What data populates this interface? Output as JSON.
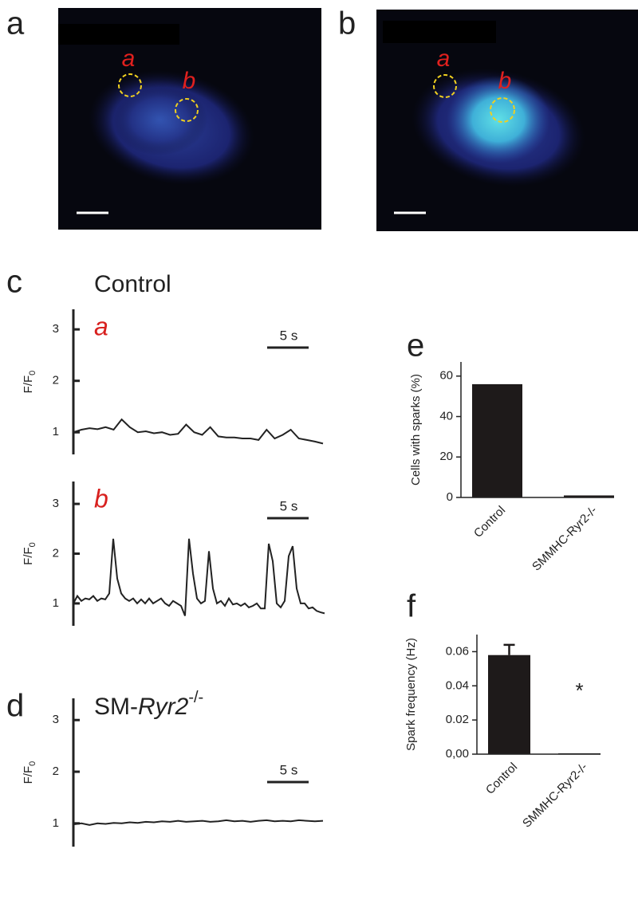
{
  "panel_labels": [
    "a",
    "b",
    "c",
    "d",
    "e",
    "f"
  ],
  "images": [
    {
      "roi_labels": [
        "a",
        "b"
      ]
    },
    {
      "roi_labels": [
        "a",
        "b"
      ]
    }
  ],
  "chart_data": [
    {
      "type": "line",
      "title": "Control",
      "label": "a",
      "scale_label": "5 s",
      "ylabel": "F/F",
      "ylabel_sub": "0",
      "color": "#222222",
      "ylim": [
        0.57,
        3.39
      ],
      "yticks": [
        1,
        2,
        3
      ],
      "values": [
        1.0,
        1.05,
        1.08,
        1.06,
        1.1,
        1.05,
        1.25,
        1.1,
        1.0,
        1.02,
        0.98,
        1.0,
        0.95,
        0.97,
        1.15,
        1.0,
        0.95,
        1.1,
        0.92,
        0.9,
        0.9,
        0.88,
        0.88,
        0.85,
        1.05,
        0.88,
        0.95,
        1.05,
        0.88,
        0.85,
        0.82,
        0.78
      ]
    },
    {
      "type": "line",
      "label": "b",
      "scale_label": "5 s",
      "ylabel": "F/F",
      "ylabel_sub": "0",
      "color": "#222222",
      "ylim": [
        0.55,
        3.45
      ],
      "yticks": [
        1,
        2,
        3
      ],
      "values": [
        1.0,
        1.15,
        1.05,
        1.1,
        1.08,
        1.15,
        1.05,
        1.1,
        1.08,
        1.2,
        2.3,
        1.5,
        1.2,
        1.1,
        1.05,
        1.1,
        1.0,
        1.08,
        1.0,
        1.1,
        1.0,
        1.05,
        1.1,
        1.0,
        0.95,
        1.05,
        1.0,
        0.95,
        0.75,
        2.3,
        1.6,
        1.1,
        1.0,
        1.05,
        2.05,
        1.3,
        1.0,
        1.05,
        0.95,
        1.1,
        0.98,
        1.0,
        0.95,
        1.0,
        0.92,
        0.95,
        1.0,
        0.9,
        0.9,
        2.2,
        1.85,
        1.0,
        0.92,
        1.05,
        1.95,
        2.15,
        1.3,
        1.0,
        1.0,
        0.9,
        0.92,
        0.85,
        0.82,
        0.8
      ]
    },
    {
      "type": "line",
      "title_parts": [
        "SM-",
        "Ryr2",
        "-/-"
      ],
      "scale_label": "5 s",
      "ylabel": "F/F",
      "ylabel_sub": "0",
      "color": "#222222",
      "ylim": [
        0.55,
        3.42
      ],
      "yticks": [
        1,
        2,
        3
      ],
      "values": [
        0.98,
        1.0,
        0.97,
        1.0,
        0.99,
        1.01,
        1.0,
        1.02,
        1.01,
        1.03,
        1.02,
        1.04,
        1.03,
        1.05,
        1.03,
        1.04,
        1.05,
        1.03,
        1.04,
        1.06,
        1.04,
        1.05,
        1.03,
        1.05,
        1.06,
        1.04,
        1.05,
        1.04,
        1.06,
        1.05,
        1.04,
        1.05
      ]
    },
    {
      "type": "bar",
      "ylabel": "Cells with sparks (%)",
      "categories": [
        "Control",
        "SMMHC-Ryr2-/-"
      ],
      "values": [
        56,
        1
      ],
      "color": "#1e1a1a",
      "ylim": [
        0,
        67
      ],
      "yticks": [
        0,
        20,
        40,
        60
      ]
    },
    {
      "type": "bar",
      "ylabel": "Spark frequency (Hz)",
      "categories": [
        "Control",
        "SMMHC-Ryr2-/-"
      ],
      "values": [
        0.058,
        0.0005
      ],
      "errors": [
        0.006,
        0
      ],
      "color": "#1e1a1a",
      "ylim": [
        0,
        0.07
      ],
      "yticks": [
        {
          "value": 0,
          "label": "0,00"
        },
        0.02,
        0.04,
        0.06
      ],
      "annotation": "*"
    }
  ]
}
